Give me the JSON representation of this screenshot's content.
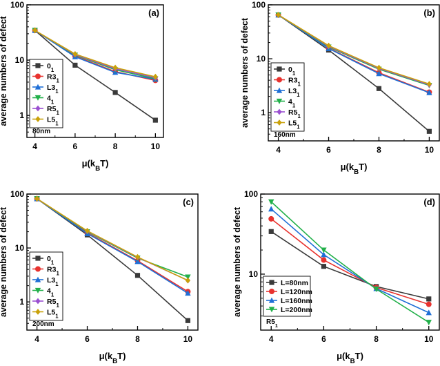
{
  "figure": {
    "xlabel": "μ(k",
    "xlabel_sub": "B",
    "xlabel_tail": "T)",
    "ylabel": "average numbers of defect"
  },
  "chart_data": [
    {
      "panel": "(a)",
      "type": "line",
      "yscale": "log",
      "xlim": [
        3.6,
        10.4
      ],
      "ylim": [
        0.4,
        100
      ],
      "x": [
        4,
        6,
        8,
        10
      ],
      "xticks": [
        "4",
        "6",
        "8",
        "10"
      ],
      "yticks": [
        {
          "v": 1,
          "t": "1"
        },
        {
          "v": 10,
          "t": "10"
        },
        {
          "v": 100,
          "t": "100"
        }
      ],
      "note": "80nm",
      "legend_position": "bottom-left",
      "series": [
        {
          "name": "0",
          "sub": "1",
          "color": "#3a3a3a",
          "marker": "square",
          "values": [
            34.5,
            8.1,
            2.6,
            0.82
          ]
        },
        {
          "name": "R3",
          "sub": "1",
          "color": "#e8322e",
          "marker": "circle",
          "values": [
            34.5,
            11.8,
            6.2,
            4.3
          ]
        },
        {
          "name": "L3",
          "sub": "1",
          "color": "#1f6fd6",
          "marker": "triangle-up",
          "values": [
            34.5,
            11.5,
            6.0,
            4.5
          ]
        },
        {
          "name": "4",
          "sub": "1",
          "color": "#22b04a",
          "marker": "triangle-down",
          "values": [
            34.5,
            12.3,
            6.7,
            4.6
          ]
        },
        {
          "name": "R5",
          "sub": "1",
          "color": "#9a4fd0",
          "marker": "diamond",
          "values": [
            34.5,
            12.6,
            7.0,
            4.8
          ]
        },
        {
          "name": "L5",
          "sub": "1",
          "color": "#c9a10a",
          "marker": "diamond",
          "values": [
            34.5,
            12.9,
            7.3,
            5.0
          ]
        }
      ]
    },
    {
      "panel": "(b)",
      "type": "line",
      "yscale": "log",
      "xlim": [
        3.6,
        10.4
      ],
      "ylim": [
        0.3,
        100
      ],
      "x": [
        4,
        6,
        8,
        10
      ],
      "xticks": [
        "4",
        "6",
        "8",
        "10"
      ],
      "yticks": [
        {
          "v": 1,
          "t": "1"
        },
        {
          "v": 10,
          "t": "10"
        },
        {
          "v": 100,
          "t": "100"
        }
      ],
      "note": "160nm",
      "legend_position": "bottom-left",
      "series": [
        {
          "name": "0",
          "sub": "1",
          "color": "#3a3a3a",
          "marker": "square",
          "values": [
            65,
            14.5,
            2.8,
            0.45
          ]
        },
        {
          "name": "R3",
          "sub": "1",
          "color": "#e8322e",
          "marker": "circle",
          "values": [
            65,
            15.8,
            5.5,
            2.4
          ]
        },
        {
          "name": "L3",
          "sub": "1",
          "color": "#1f6fd6",
          "marker": "triangle-up",
          "values": [
            65,
            15.5,
            5.3,
            2.35
          ]
        },
        {
          "name": "4",
          "sub": "1",
          "color": "#22b04a",
          "marker": "triangle-down",
          "values": [
            65,
            16.5,
            6.4,
            3.2
          ]
        },
        {
          "name": "R5",
          "sub": "1",
          "color": "#9a4fd0",
          "marker": "diamond",
          "values": [
            65,
            17.0,
            6.6,
            3.3
          ]
        },
        {
          "name": "L5",
          "sub": "1",
          "color": "#c9a10a",
          "marker": "diamond",
          "values": [
            65,
            17.5,
            6.8,
            3.4
          ]
        }
      ]
    },
    {
      "panel": "(c)",
      "type": "line",
      "yscale": "log",
      "xlim": [
        3.6,
        10.4
      ],
      "ylim": [
        0.3,
        100
      ],
      "x": [
        4,
        6,
        8,
        10
      ],
      "xticks": [
        "4",
        "6",
        "8",
        "10"
      ],
      "yticks": [
        {
          "v": 1,
          "t": "1"
        },
        {
          "v": 10,
          "t": "10"
        },
        {
          "v": 100,
          "t": "100"
        }
      ],
      "note": "200nm",
      "legend_position": "bottom-left",
      "series": [
        {
          "name": "0",
          "sub": "1",
          "color": "#3a3a3a",
          "marker": "square",
          "values": [
            82,
            17.5,
            3.1,
            0.45
          ]
        },
        {
          "name": "R3",
          "sub": "1",
          "color": "#e8322e",
          "marker": "circle",
          "values": [
            82,
            19.0,
            5.8,
            1.55
          ]
        },
        {
          "name": "L3",
          "sub": "1",
          "color": "#1f6fd6",
          "marker": "triangle-up",
          "values": [
            82,
            18.5,
            5.6,
            1.45
          ]
        },
        {
          "name": "4",
          "sub": "1",
          "color": "#22b04a",
          "marker": "triangle-down",
          "values": [
            82,
            20.0,
            6.5,
            2.9
          ]
        },
        {
          "name": "R5",
          "sub": "1",
          "color": "#9a4fd0",
          "marker": "diamond",
          "values": [
            82,
            20.5,
            6.7,
            2.5
          ]
        },
        {
          "name": "L5",
          "sub": "1",
          "color": "#c9a10a",
          "marker": "diamond",
          "values": [
            82,
            20.8,
            6.8,
            2.5
          ]
        }
      ]
    },
    {
      "panel": "(d)",
      "type": "line",
      "yscale": "log",
      "xlim": [
        3.6,
        10.4
      ],
      "ylim": [
        2,
        100
      ],
      "x": [
        4,
        6,
        8,
        10
      ],
      "xticks": [
        "4",
        "6",
        "8",
        "10"
      ],
      "yticks": [
        {
          "v": 10,
          "t": "10"
        },
        {
          "v": 100,
          "t": "100"
        }
      ],
      "note": "R5",
      "note_sub": "1",
      "legend_position": "bottom-left",
      "series": [
        {
          "name": "L=80nm",
          "sub": "",
          "color": "#3a3a3a",
          "marker": "square",
          "values": [
            34,
            12.5,
            7.0,
            4.9
          ]
        },
        {
          "name": "L=120nm",
          "sub": "",
          "color": "#e8322e",
          "marker": "circle",
          "values": [
            49,
            15.0,
            6.8,
            4.2
          ]
        },
        {
          "name": "L=160nm",
          "sub": "",
          "color": "#1f6fd6",
          "marker": "triangle-up",
          "values": [
            65,
            17.5,
            6.6,
            3.3
          ]
        },
        {
          "name": "L=200nm",
          "sub": "",
          "color": "#22b04a",
          "marker": "triangle-down",
          "values": [
            80,
            20.0,
            6.5,
            2.5
          ]
        }
      ]
    }
  ]
}
